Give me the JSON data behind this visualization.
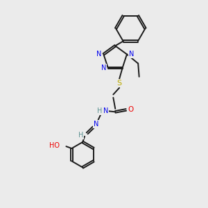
{
  "background_color": "#ebebeb",
  "atoms": {
    "colors": {
      "C": "#1a1a1a",
      "N": "#0000ee",
      "O": "#ee0000",
      "S": "#bbaa00",
      "H_teal": "#5a9090"
    }
  },
  "layout": {
    "xlim": [
      0,
      10
    ],
    "ylim": [
      0,
      10
    ],
    "figsize": [
      3.0,
      3.0
    ],
    "dpi": 100
  }
}
